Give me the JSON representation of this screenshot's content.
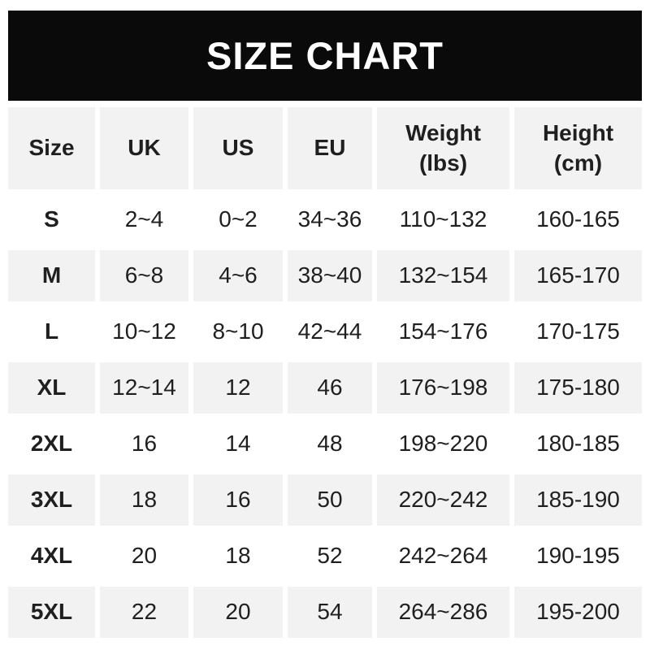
{
  "banner": {
    "title": "SIZE CHART"
  },
  "display": {
    "columns": [
      "Size",
      "UK",
      "US",
      "EU",
      "Weight\n(lbs)",
      "Height\n(cm)"
    ]
  },
  "chart_data": {
    "type": "table",
    "title": "SIZE CHART",
    "columns": [
      "Size",
      "UK",
      "US",
      "EU",
      "Weight (lbs)",
      "Height (cm)"
    ],
    "rows": [
      [
        "S",
        "2~4",
        "0~2",
        "34~36",
        "110~132",
        "160-165"
      ],
      [
        "M",
        "6~8",
        "4~6",
        "38~40",
        "132~154",
        "165-170"
      ],
      [
        "L",
        "10~12",
        "8~10",
        "42~44",
        "154~176",
        "170-175"
      ],
      [
        "XL",
        "12~14",
        "12",
        "46",
        "176~198",
        "175-180"
      ],
      [
        "2XL",
        "16",
        "14",
        "48",
        "198~220",
        "180-185"
      ],
      [
        "3XL",
        "18",
        "16",
        "50",
        "220~242",
        "185-190"
      ],
      [
        "4XL",
        "20",
        "18",
        "52",
        "242~264",
        "190-195"
      ],
      [
        "5XL",
        "22",
        "20",
        "54",
        "264~286",
        "195-200"
      ]
    ],
    "layout": {
      "header_background": "#f2f2f2",
      "alternating_row_backgrounds": [
        "#ffffff",
        "#f2f2f2"
      ],
      "banner_background": "#0a0a0a",
      "banner_text_color": "#ffffff",
      "text_color": "#1f1f1f"
    }
  }
}
